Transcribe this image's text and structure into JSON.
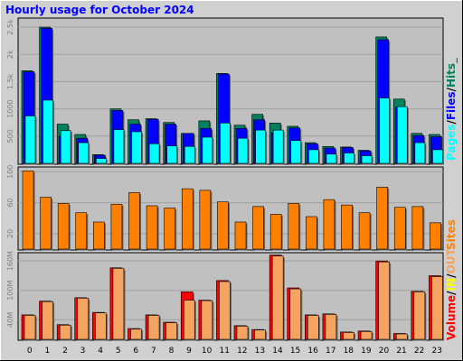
{
  "title": "Hourly usage for October 2024",
  "colors": {
    "outer_bg": "#d0d0d0",
    "plot_bg": "#c0c0c0",
    "title": "#0000ff",
    "hits": "#00805c",
    "files": "#0000ff",
    "pages": "#00ffff",
    "sites": "#ff8000",
    "volume": "#ff0000",
    "in": "#ffff00",
    "out": "#f4a460",
    "axis_text": "#808080"
  },
  "legend": {
    "pages": "Pages",
    "files": "Files",
    "hits": "Hits",
    "sites": "Sites",
    "volume": "Volume",
    "in": "IN",
    "out": "OUT",
    "sep": "/",
    "tail": "_"
  },
  "chart_data": [
    {
      "type": "bar",
      "name": "hits-files-pages",
      "categories": [
        "0",
        "1",
        "2",
        "3",
        "4",
        "5",
        "6",
        "7",
        "8",
        "9",
        "10",
        "11",
        "12",
        "13",
        "14",
        "15",
        "16",
        "17",
        "18",
        "19",
        "20",
        "21",
        "22",
        "23"
      ],
      "y_ticks": [
        "500",
        "1000",
        "1.5k",
        "2k",
        "2.5k"
      ],
      "ylim": [
        0,
        2650
      ],
      "series": [
        {
          "name": "Hits",
          "values": [
            1700,
            2500,
            720,
            530,
            160,
            1000,
            800,
            820,
            750,
            550,
            780,
            1650,
            700,
            900,
            740,
            680,
            380,
            310,
            300,
            240,
            2320,
            1180,
            550,
            530
          ]
        },
        {
          "name": "Files",
          "values": [
            1680,
            2480,
            500,
            460,
            150,
            970,
            720,
            810,
            720,
            550,
            640,
            1640,
            640,
            800,
            560,
            650,
            360,
            280,
            290,
            230,
            2270,
            1030,
            510,
            490
          ]
        },
        {
          "name": "Pages",
          "values": [
            870,
            1160,
            600,
            380,
            90,
            620,
            580,
            360,
            320,
            310,
            480,
            740,
            460,
            610,
            610,
            420,
            250,
            170,
            190,
            140,
            1200,
            1040,
            380,
            250
          ]
        }
      ]
    },
    {
      "type": "bar",
      "name": "sites",
      "categories": [
        "0",
        "1",
        "2",
        "3",
        "4",
        "5",
        "6",
        "7",
        "8",
        "9",
        "10",
        "11",
        "12",
        "13",
        "14",
        "15",
        "16",
        "17",
        "18",
        "19",
        "20",
        "21",
        "22",
        "23"
      ],
      "y_ticks": [
        "20",
        "60",
        "100"
      ],
      "ylim": [
        0,
        105
      ],
      "series": [
        {
          "name": "Sites",
          "values": [
            101,
            67,
            59,
            47,
            35,
            58,
            73,
            56,
            53,
            78,
            76,
            61,
            35,
            55,
            45,
            59,
            42,
            64,
            57,
            47,
            80,
            54,
            55,
            34
          ]
        }
      ]
    },
    {
      "type": "bar",
      "name": "volume",
      "categories": [
        "0",
        "1",
        "2",
        "3",
        "4",
        "5",
        "6",
        "7",
        "8",
        "9",
        "10",
        "11",
        "12",
        "13",
        "14",
        "15",
        "16",
        "17",
        "18",
        "19",
        "20",
        "21",
        "22",
        "23"
      ],
      "y_ticks": [
        "40M",
        "100M",
        "160M"
      ],
      "ylim": [
        0,
        175
      ],
      "series": [
        {
          "name": "Volume",
          "values": [
            50,
            78,
            30,
            85,
            55,
            146,
            22,
            50,
            35,
            97,
            80,
            120,
            28,
            20,
            172,
            105,
            50,
            52,
            15,
            17,
            160,
            12,
            98,
            130
          ]
        },
        {
          "name": "OUT",
          "values": [
            49,
            77,
            29,
            84,
            54,
            145,
            21,
            49,
            34,
            80,
            79,
            118,
            27,
            19,
            170,
            103,
            49,
            51,
            14,
            16,
            158,
            11,
            97,
            128
          ]
        }
      ]
    }
  ]
}
